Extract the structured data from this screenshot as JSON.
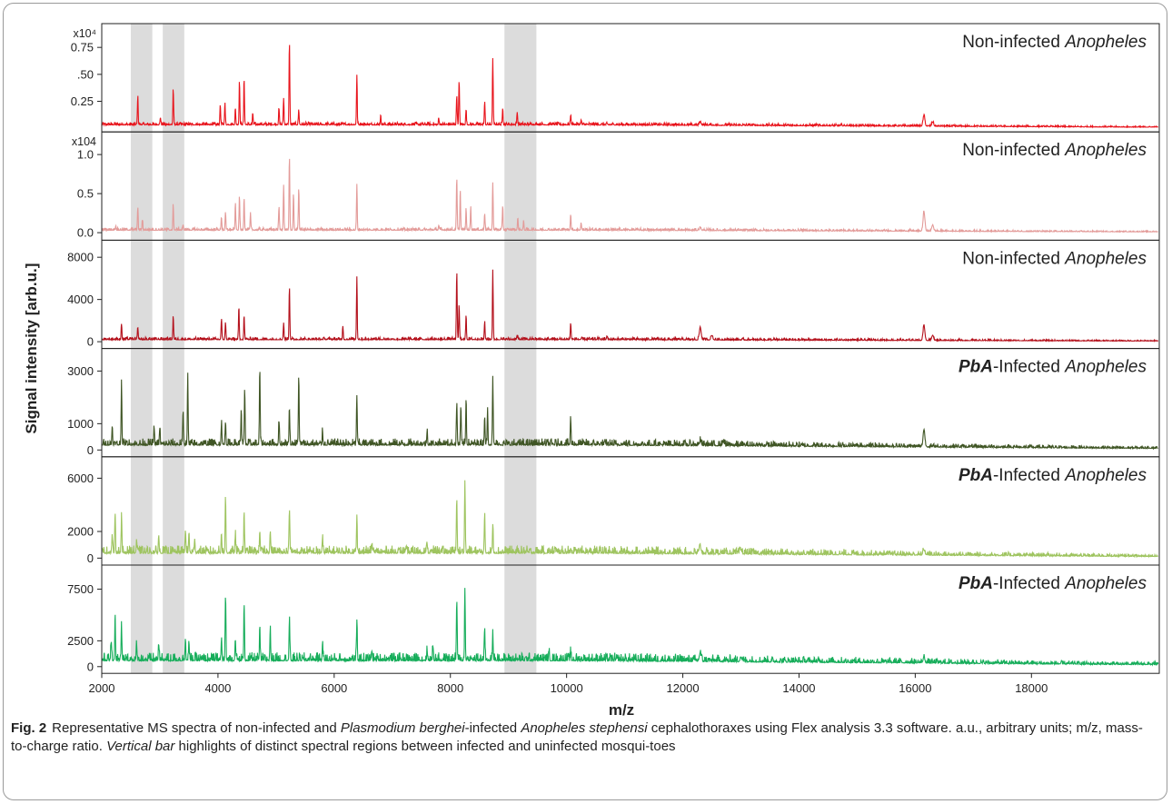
{
  "chart_data": {
    "type": "line",
    "xlabel": "m/z",
    "ylabel": "Signal intensity  [arb.u.]",
    "xlim": [
      2000,
      20200
    ],
    "x_ticks": [
      "2000",
      "4000",
      "6000",
      "8000",
      "10000",
      "12000",
      "14000",
      "16000",
      "18000"
    ],
    "x_tick_values": [
      2000,
      4000,
      6000,
      8000,
      10000,
      12000,
      14000,
      16000,
      18000
    ],
    "highlight_bands": [
      [
        2500,
        2870
      ],
      [
        3050,
        3420
      ],
      [
        8930,
        9480
      ]
    ],
    "highlight_color": "#dcdcdc",
    "panels": [
      {
        "label_prefix": "",
        "label_text": "Non-infected ",
        "label_italic": "Anopheles",
        "color": "#e8141c",
        "exponent_label": "x10⁴",
        "y_tick_labels": [
          "0.25",
          ".50",
          "0.75"
        ],
        "y_tick_values": [
          0.25,
          0.5,
          0.75
        ],
        "ylim": [
          0,
          0.92
        ],
        "baseline": 0.03,
        "noise": 0.012,
        "peaks": [
          [
            2620,
            0.26
          ],
          [
            3010,
            0.07
          ],
          [
            3230,
            0.34
          ],
          [
            4040,
            0.19
          ],
          [
            4120,
            0.2
          ],
          [
            4300,
            0.15
          ],
          [
            4370,
            0.42
          ],
          [
            4450,
            0.43
          ],
          [
            4600,
            0.1
          ],
          [
            5050,
            0.15
          ],
          [
            5130,
            0.25
          ],
          [
            5230,
            0.78
          ],
          [
            5390,
            0.14
          ],
          [
            6390,
            0.46
          ],
          [
            6800,
            0.08
          ],
          [
            7800,
            0.06
          ],
          [
            8110,
            0.28
          ],
          [
            8150,
            0.41
          ],
          [
            8270,
            0.14
          ],
          [
            8590,
            0.21
          ],
          [
            8730,
            0.62
          ],
          [
            8900,
            0.16
          ],
          [
            9150,
            0.12
          ],
          [
            10070,
            0.09
          ],
          [
            10250,
            0.04
          ],
          [
            12300,
            0.03
          ],
          [
            16150,
            0.1
          ],
          [
            16300,
            0.04
          ]
        ]
      },
      {
        "label_prefix": "",
        "label_text": "Non-infected ",
        "label_italic": "Anopheles",
        "color": "#e39b99",
        "exponent_label": "x104",
        "y_tick_labels": [
          "0.0",
          "0.5",
          "1.0"
        ],
        "y_tick_values": [
          0,
          0.5,
          1.0
        ],
        "ylim": [
          -0.05,
          1.22
        ],
        "baseline": 0.03,
        "noise": 0.015,
        "peaks": [
          [
            2240,
            0.05
          ],
          [
            2620,
            0.28
          ],
          [
            2700,
            0.13
          ],
          [
            3230,
            0.32
          ],
          [
            3400,
            0.05
          ],
          [
            4060,
            0.16
          ],
          [
            4130,
            0.21
          ],
          [
            4300,
            0.33
          ],
          [
            4370,
            0.45
          ],
          [
            4450,
            0.42
          ],
          [
            4560,
            0.2
          ],
          [
            5050,
            0.3
          ],
          [
            5130,
            0.58
          ],
          [
            5230,
            0.94
          ],
          [
            5300,
            0.45
          ],
          [
            5390,
            0.55
          ],
          [
            6390,
            0.58
          ],
          [
            7800,
            0.06
          ],
          [
            8110,
            0.67
          ],
          [
            8170,
            0.52
          ],
          [
            8270,
            0.26
          ],
          [
            8350,
            0.3
          ],
          [
            8590,
            0.22
          ],
          [
            8730,
            0.6
          ],
          [
            8900,
            0.32
          ],
          [
            9160,
            0.15
          ],
          [
            9260,
            0.1
          ],
          [
            10070,
            0.2
          ],
          [
            10250,
            0.09
          ],
          [
            12300,
            0.03
          ],
          [
            16150,
            0.25
          ],
          [
            16300,
            0.08
          ]
        ]
      },
      {
        "label_prefix": "",
        "label_text": "Non-infected ",
        "label_italic": "Anopheles",
        "color": "#b4101b",
        "exponent_label": "",
        "y_tick_labels": [
          "0",
          "4000",
          "8000"
        ],
        "y_tick_values": [
          0,
          4000,
          8000
        ],
        "ylim": [
          -300,
          9100
        ],
        "baseline": 180,
        "noise": 110,
        "peaks": [
          [
            2340,
            1500
          ],
          [
            2620,
            1100
          ],
          [
            3230,
            2300
          ],
          [
            4060,
            2000
          ],
          [
            4130,
            1600
          ],
          [
            4360,
            3100
          ],
          [
            4450,
            2300
          ],
          [
            5130,
            1600
          ],
          [
            5230,
            5100
          ],
          [
            6150,
            1300
          ],
          [
            6390,
            6000
          ],
          [
            8110,
            6500
          ],
          [
            8150,
            3300
          ],
          [
            8270,
            2400
          ],
          [
            8590,
            1600
          ],
          [
            8730,
            6500
          ],
          [
            9150,
            400
          ],
          [
            10070,
            1600
          ],
          [
            10700,
            300
          ],
          [
            12300,
            1200
          ],
          [
            12500,
            400
          ],
          [
            16150,
            1400
          ],
          [
            16300,
            500
          ]
        ]
      },
      {
        "label_prefix": "PbA",
        "label_text": "-Infected ",
        "label_italic": "Anopheles",
        "color": "#3f5524",
        "exponent_label": "",
        "y_tick_labels": [
          "0",
          "1000",
          "3000"
        ],
        "y_tick_values": [
          0,
          1000,
          3000
        ],
        "ylim": [
          -120,
          3650
        ],
        "baseline": 180,
        "noise": 110,
        "peaks": [
          [
            2180,
            700
          ],
          [
            2340,
            2500
          ],
          [
            2900,
            600
          ],
          [
            3000,
            650
          ],
          [
            3400,
            1300
          ],
          [
            3480,
            2700
          ],
          [
            4060,
            800
          ],
          [
            4130,
            900
          ],
          [
            4400,
            1400
          ],
          [
            4460,
            2100
          ],
          [
            4720,
            2900
          ],
          [
            5050,
            900
          ],
          [
            5230,
            1400
          ],
          [
            5390,
            2700
          ],
          [
            5800,
            500
          ],
          [
            6390,
            1900
          ],
          [
            7600,
            550
          ],
          [
            8110,
            1600
          ],
          [
            8180,
            1500
          ],
          [
            8270,
            1800
          ],
          [
            8590,
            1100
          ],
          [
            8640,
            1300
          ],
          [
            8730,
            2500
          ],
          [
            10070,
            1000
          ],
          [
            12300,
            150
          ],
          [
            12700,
            150
          ],
          [
            16150,
            650
          ]
        ]
      },
      {
        "label_prefix": "PbA",
        "label_text": "-Infected ",
        "label_italic": "Anopheles",
        "color": "#9ec45f",
        "exponent_label": "",
        "y_tick_labels": [
          "0",
          "2000",
          "6000"
        ],
        "y_tick_values": [
          0,
          2000,
          6000
        ],
        "ylim": [
          -250,
          7200
        ],
        "baseline": 350,
        "noise": 250,
        "peaks": [
          [
            2180,
            1300
          ],
          [
            2230,
            2900
          ],
          [
            2340,
            2700
          ],
          [
            2600,
            1000
          ],
          [
            2980,
            1300
          ],
          [
            3440,
            1800
          ],
          [
            3500,
            1500
          ],
          [
            3600,
            1100
          ],
          [
            4060,
            1500
          ],
          [
            4130,
            4100
          ],
          [
            4300,
            1300
          ],
          [
            4450,
            3200
          ],
          [
            4720,
            1700
          ],
          [
            4900,
            1700
          ],
          [
            5230,
            3400
          ],
          [
            5800,
            1000
          ],
          [
            6390,
            2700
          ],
          [
            6650,
            700
          ],
          [
            7600,
            700
          ],
          [
            8110,
            4200
          ],
          [
            8250,
            5500
          ],
          [
            8590,
            2600
          ],
          [
            8730,
            2100
          ],
          [
            9800,
            400
          ],
          [
            10070,
            400
          ],
          [
            12300,
            500
          ],
          [
            13000,
            300
          ],
          [
            16150,
            400
          ]
        ]
      },
      {
        "label_prefix": "PbA",
        "label_text": "-Infected ",
        "label_italic": "Anopheles",
        "color": "#16ad5a",
        "exponent_label": "",
        "y_tick_labels": [
          "0",
          "2500",
          "7500"
        ],
        "y_tick_values": [
          0,
          2500,
          7500
        ],
        "ylim": [
          -300,
          9300
        ],
        "baseline": 550,
        "noise": 350,
        "peaks": [
          [
            2160,
            1700
          ],
          [
            2230,
            4600
          ],
          [
            2340,
            3400
          ],
          [
            2600,
            1400
          ],
          [
            2980,
            1600
          ],
          [
            3440,
            2200
          ],
          [
            3500,
            1800
          ],
          [
            4060,
            2000
          ],
          [
            4130,
            6400
          ],
          [
            4300,
            2100
          ],
          [
            4450,
            5300
          ],
          [
            4720,
            2800
          ],
          [
            4900,
            2900
          ],
          [
            5230,
            4000
          ],
          [
            5800,
            1700
          ],
          [
            6390,
            3700
          ],
          [
            6650,
            1000
          ],
          [
            7600,
            900
          ],
          [
            7700,
            1500
          ],
          [
            8110,
            6000
          ],
          [
            8250,
            7000
          ],
          [
            8590,
            2900
          ],
          [
            8730,
            2600
          ],
          [
            9700,
            500
          ],
          [
            10070,
            600
          ],
          [
            12300,
            800
          ],
          [
            13000,
            400
          ],
          [
            16150,
            500
          ]
        ]
      }
    ]
  },
  "caption": {
    "fig_label": "Fig. 2",
    "text1": "Representative MS spectra of non-infected and ",
    "italic1": "Plasmodium berghei",
    "text2": "-infected ",
    "italic2": "Anopheles stephensi",
    "text3": " cephalothoraxes using Flex analysis 3.3 software. a.u., arbitrary units; m/z, mass-to-charge ratio. ",
    "italic3": "Vertical bar",
    "text4": " highlights of distinct spectral regions between infected and uninfected mosqui-toes"
  }
}
